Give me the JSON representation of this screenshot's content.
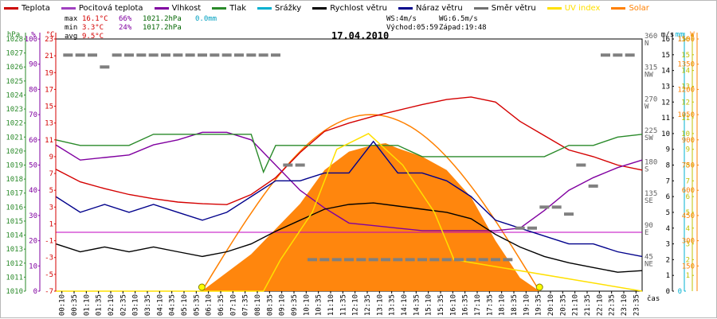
{
  "legend": [
    {
      "label": "Teplota",
      "color": "#cc0000"
    },
    {
      "label": "Pocitová teplota",
      "color": "#a040c0"
    },
    {
      "label": "Vlhkost",
      "color": "#8000a0"
    },
    {
      "label": "Tlak",
      "color": "#2a8a2a"
    },
    {
      "label": "Srážky",
      "color": "#00b0d0"
    },
    {
      "label": "Rychlost větru",
      "color": "#000000"
    },
    {
      "label": "Náraz větru",
      "color": "#00008b"
    },
    {
      "label": "Směr větru",
      "color": "#707070"
    },
    {
      "label": "UV index",
      "color": "#ffe000"
    },
    {
      "label": "Solar",
      "color": "#ff8000"
    }
  ],
  "stats": {
    "max": {
      "label": "max",
      "temp": "16.1°C",
      "hum": "66%",
      "press": "1021.2hPa",
      "rain": "0.0mm"
    },
    "min": {
      "label": "min",
      "temp": "3.3°C",
      "hum": "24%",
      "press": "1017.2hPa"
    },
    "avg": {
      "label": "avg",
      "temp": "9.5°C"
    }
  },
  "wind_info": {
    "ws": "WS:4m/s",
    "wg": "WG:6.5m/s",
    "sunrise": "Východ:05:59",
    "sunset": "Západ:19:48"
  },
  "date": "17.04.2010",
  "chart_data": {
    "type": "line",
    "title": "17.04.2010",
    "xlabel": "čas",
    "x_ticks": [
      "00:10",
      "00:35",
      "01:10",
      "01:35",
      "02:10",
      "02:35",
      "03:10",
      "03:35",
      "04:10",
      "04:35",
      "05:10",
      "05:35",
      "06:10",
      "06:35",
      "07:10",
      "07:35",
      "08:10",
      "08:35",
      "09:10",
      "09:35",
      "10:10",
      "10:35",
      "11:10",
      "11:35",
      "12:10",
      "12:35",
      "13:10",
      "13:35",
      "14:10",
      "14:35",
      "15:10",
      "15:35",
      "16:10",
      "16:35",
      "17:10",
      "17:35",
      "18:10",
      "18:35",
      "19:10",
      "19:35",
      "20:10",
      "20:35",
      "21:10",
      "21:35",
      "22:10",
      "22:35",
      "23:10",
      "23:35"
    ],
    "axes": {
      "pressure": {
        "unit": "hPa",
        "range": [
          1010,
          1028
        ],
        "ticks": [
          "1010",
          "1011",
          "1012",
          "1013",
          "1014",
          "1015",
          "1016",
          "1017",
          "1018",
          "1019",
          "1020",
          "1021",
          "1022",
          "1023",
          "1024",
          "1025",
          "1026",
          "1027",
          "1028"
        ]
      },
      "humidity": {
        "unit": "%",
        "range": [
          0,
          100
        ],
        "ticks": [
          "0",
          "10",
          "20",
          "30",
          "40",
          "50",
          "60",
          "70",
          "80",
          "90",
          "100"
        ]
      },
      "temperature": {
        "unit": "°C",
        "range": [
          -7,
          23
        ],
        "ticks": [
          "-7",
          "-5",
          "-3",
          "-1",
          "1",
          "3",
          "5",
          "7",
          "9",
          "11",
          "13",
          "15",
          "17",
          "19",
          "21",
          "23"
        ]
      },
      "wind_speed": {
        "unit": "m/s",
        "range": [
          0,
          16
        ],
        "ticks": [
          "0",
          "1",
          "2",
          "3",
          "4",
          "5",
          "6",
          "7",
          "8",
          "9",
          "10",
          "11",
          "12",
          "13",
          "14",
          "15",
          "16"
        ]
      },
      "direction": {
        "unit": "°",
        "range": [
          0,
          360
        ],
        "ticks": [
          "45 NE",
          "90 E",
          "135 SE",
          "180 S",
          "225 SW",
          "270 W",
          "315 NW",
          "360 N"
        ]
      },
      "rain": {
        "unit": "mm",
        "range": [
          0,
          1
        ],
        "ticks": [
          "0",
          "1"
        ]
      },
      "uv": {
        "unit": "",
        "range": [
          0,
          16
        ],
        "ticks": [
          "1",
          "2",
          "3",
          "4",
          "5",
          "6",
          "7",
          "8",
          "9",
          "10",
          "11",
          "12",
          "13",
          "14",
          "15",
          "16"
        ]
      },
      "solar": {
        "unit": "W",
        "range": [
          0,
          1500
        ],
        "ticks": [
          "150",
          "300",
          "450",
          "600",
          "750",
          "900",
          "1050",
          "1200",
          "1350",
          "1500"
        ]
      }
    },
    "series": [
      {
        "name": "Teplota",
        "axis": "temperature",
        "hours": [
          0,
          1,
          2,
          3,
          4,
          5,
          6,
          7,
          8,
          9,
          10,
          11,
          12,
          13,
          14,
          15,
          16,
          17,
          18,
          19,
          20,
          21,
          22,
          23,
          24
        ],
        "values": [
          7.5,
          6.0,
          5.2,
          4.5,
          4.0,
          3.6,
          3.4,
          3.3,
          4.5,
          6.5,
          9.5,
          12.0,
          13.0,
          13.8,
          14.5,
          15.2,
          15.8,
          16.1,
          15.5,
          13.2,
          11.5,
          9.8,
          9.0,
          8.0,
          7.4
        ]
      },
      {
        "name": "Vlhkost",
        "axis": "humidity",
        "hours": [
          0,
          1,
          2,
          3,
          4,
          5,
          6,
          7,
          8,
          9,
          10,
          11,
          12,
          13,
          14,
          15,
          16,
          17,
          18,
          19,
          20,
          21,
          22,
          23,
          24
        ],
        "values": [
          58,
          52,
          53,
          54,
          58,
          60,
          63,
          63,
          60,
          50,
          40,
          33,
          27,
          26,
          25,
          24,
          24,
          24,
          24,
          25,
          32,
          40,
          45,
          49,
          52
        ]
      },
      {
        "name": "Tlak",
        "axis": "pressure",
        "hours": [
          0,
          1,
          2,
          3,
          4,
          5,
          6,
          7,
          8,
          8.5,
          9,
          10,
          11,
          12,
          13,
          14,
          15,
          16,
          17,
          18,
          19,
          20,
          21,
          22,
          23,
          24
        ],
        "values": [
          1020.8,
          1020.4,
          1020.4,
          1020.4,
          1021.2,
          1021.2,
          1021.2,
          1021.2,
          1021.2,
          1018.5,
          1020.4,
          1020.4,
          1020.4,
          1020.4,
          1020.4,
          1020.4,
          1019.6,
          1019.6,
          1019.6,
          1019.6,
          1019.6,
          1019.6,
          1020.4,
          1020.4,
          1021.0,
          1021.2
        ]
      },
      {
        "name": "Rychlost větru",
        "axis": "wind_speed",
        "hours": [
          0,
          1,
          2,
          3,
          4,
          5,
          6,
          7,
          8,
          9,
          10,
          11,
          12,
          13,
          14,
          15,
          16,
          17,
          18,
          19,
          20,
          21,
          22,
          23,
          24
        ],
        "values": [
          3,
          2.5,
          2.8,
          2.5,
          2.8,
          2.5,
          2.2,
          2.5,
          3,
          3.8,
          4.5,
          5.2,
          5.5,
          5.6,
          5.4,
          5.2,
          5.0,
          4.6,
          3.6,
          2.8,
          2.2,
          1.8,
          1.5,
          1.2,
          1.3
        ]
      },
      {
        "name": "Náraz větru",
        "axis": "wind_speed",
        "hours": [
          0,
          1,
          2,
          3,
          4,
          5,
          6,
          7,
          8,
          9,
          10,
          11,
          12,
          13,
          14,
          15,
          16,
          17,
          18,
          19,
          20,
          21,
          22,
          23,
          24
        ],
        "values": [
          6,
          5,
          5.5,
          5,
          5.5,
          5,
          4.5,
          5,
          6,
          7,
          7,
          7.5,
          7.5,
          9.5,
          7.5,
          7.5,
          7,
          6,
          4.5,
          4,
          3.5,
          3,
          3,
          2.5,
          2.2
        ]
      },
      {
        "name": "UV index",
        "axis": "uv",
        "hours": [
          0,
          8.5,
          9.2,
          10.5,
          11.5,
          12.8,
          14.2,
          15.5,
          16.3,
          24
        ],
        "values": [
          0,
          0,
          2,
          5,
          9,
          10,
          8,
          5,
          2,
          0
        ]
      },
      {
        "name": "Solar",
        "axis": "solar",
        "hours": [
          5.98,
          8,
          10,
          11,
          12,
          13,
          13.5,
          14,
          15,
          16,
          17,
          18,
          19,
          19.8
        ],
        "values": [
          0,
          220,
          520,
          720,
          830,
          870,
          880,
          850,
          800,
          720,
          560,
          300,
          80,
          0
        ]
      }
    ],
    "wind_direction": {
      "axis": "direction",
      "hours": [
        0.5,
        1,
        1.5,
        2,
        2.5,
        3,
        3.5,
        4,
        4.5,
        5,
        5.5,
        6,
        6.5,
        7,
        7.5,
        8,
        8.5,
        9,
        9.5,
        10,
        10.5,
        11,
        11.5,
        12,
        12.5,
        13,
        13.5,
        14,
        14.5,
        15,
        15.5,
        16,
        16.5,
        17,
        17.5,
        18,
        18.5,
        19,
        19.5,
        20,
        20.5,
        21,
        21.5,
        22,
        22.5,
        23,
        23.5
      ],
      "degrees": [
        337,
        337,
        337,
        320,
        337,
        337,
        337,
        337,
        337,
        337,
        337,
        337,
        337,
        337,
        337,
        337,
        337,
        337,
        180,
        180,
        45,
        45,
        45,
        45,
        45,
        45,
        45,
        45,
        45,
        45,
        45,
        45,
        45,
        45,
        45,
        45,
        45,
        90,
        90,
        120,
        120,
        110,
        180,
        150,
        337,
        337,
        337
      ]
    }
  }
}
